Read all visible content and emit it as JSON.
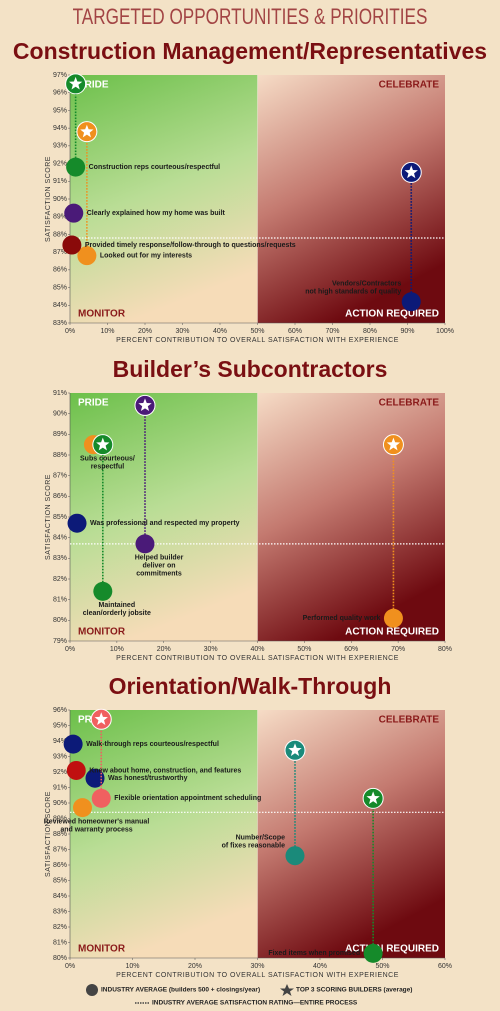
{
  "header": {
    "title": "TARGETED OPPORTUNITIES & PRIORITIES"
  },
  "legend": {
    "industry_average": "INDUSTRY AVERAGE (builders 500 + closings/year)",
    "top3": "TOP 3 SCORING BUILDERS (average)",
    "average_line": "INDUSTRY AVERAGE SATISFACTION RATING—ENTIRE PROCESS"
  },
  "chart_data": [
    {
      "type": "scatter",
      "title": "Construction Management/Representatives",
      "xlabel": "PERCENT CONTRIBUTION TO OVERALL SATISFACTION WITH EXPERIENCE",
      "ylabel": "SATISFACTION SCORE",
      "quadrants": {
        "top_left": "PRIDE",
        "top_right": "CELEBRATE",
        "bottom_left": "MONITOR",
        "bottom_right": "ACTION REQUIRED"
      },
      "xlim": [
        0,
        100
      ],
      "xticks": [
        {
          "value": 0,
          "label": "0%"
        },
        {
          "value": 10,
          "label": "10%"
        },
        {
          "value": 20,
          "label": "20%"
        },
        {
          "value": 30,
          "label": "30%"
        },
        {
          "value": 40,
          "label": "40%"
        },
        {
          "value": 50,
          "label": "50%"
        },
        {
          "value": 60,
          "label": "60%"
        },
        {
          "value": 70,
          "label": "70%"
        },
        {
          "value": 80,
          "label": "80%"
        },
        {
          "value": 90,
          "label": "90%"
        },
        {
          "value": 100,
          "label": "100%"
        }
      ],
      "ylim": [
        83,
        97
      ],
      "yticks": [
        {
          "value": 83,
          "label": "83%"
        },
        {
          "value": 84,
          "label": "84%"
        },
        {
          "value": 85,
          "label": "85%"
        },
        {
          "value": 86,
          "label": "86%"
        },
        {
          "value": 87,
          "label": "87%"
        },
        {
          "value": 88,
          "label": "88%"
        },
        {
          "value": 89,
          "label": "89%"
        },
        {
          "value": 90,
          "label": "90%"
        },
        {
          "value": 91,
          "label": "91%"
        },
        {
          "value": 92,
          "label": "92%"
        },
        {
          "value": 93,
          "label": "93%"
        },
        {
          "value": 94,
          "label": "94%"
        },
        {
          "value": 95,
          "label": "95%"
        },
        {
          "value": 96,
          "label": "96%"
        },
        {
          "value": 97,
          "label": "97%"
        }
      ],
      "divider_x": 50,
      "average_line": 87.8,
      "points": [
        {
          "label": [
            "Construction reps courteous/respectful"
          ],
          "color": "#158a2a",
          "x": 1.5,
          "y": 91.8,
          "top3": 96.5
        },
        {
          "label": [
            "Looked out for my interests"
          ],
          "color": "#f0901e",
          "x": 4.5,
          "y": 86.8,
          "top3": 93.8
        },
        {
          "label": [
            "Clearly explained how my home was built"
          ],
          "color": "#4a1a78",
          "x": 1,
          "y": 89.2,
          "top3": null
        },
        {
          "label": [
            "Provided timely response/follow-through to questions/requests"
          ],
          "color": "#8a0a0a",
          "x": 0.5,
          "y": 87.4,
          "top3": null
        },
        {
          "label": [
            "Vendors/Contractors",
            "not high standards of quality"
          ],
          "color": "#0c1a78",
          "x": 91,
          "y": 84.2,
          "top3": 91.5
        }
      ]
    },
    {
      "type": "scatter",
      "title": "Builder’s Subcontractors",
      "xlabel": "PERCENT CONTRIBUTION TO OVERALL SATISFACTION WITH EXPERIENCE",
      "ylabel": "SATISFACTION SCORE",
      "quadrants": {
        "top_left": "PRIDE",
        "top_right": "CELEBRATE",
        "bottom_left": "MONITOR",
        "bottom_right": "ACTION REQUIRED"
      },
      "xlim": [
        0,
        80
      ],
      "xticks": [
        {
          "value": 0,
          "label": "0%"
        },
        {
          "value": 10,
          "label": "10%"
        },
        {
          "value": 20,
          "label": "20%"
        },
        {
          "value": 30,
          "label": "30%"
        },
        {
          "value": 40,
          "label": "40%"
        },
        {
          "value": 50,
          "label": "50%"
        },
        {
          "value": 60,
          "label": "60%"
        },
        {
          "value": 70,
          "label": "70%"
        },
        {
          "value": 80,
          "label": "80%"
        }
      ],
      "ylim": [
        79,
        91
      ],
      "yticks": [
        {
          "value": 79,
          "label": "79%"
        },
        {
          "value": 80,
          "label": "80%"
        },
        {
          "value": 81,
          "label": "81%"
        },
        {
          "value": 82,
          "label": "82%"
        },
        {
          "value": 83,
          "label": "83%"
        },
        {
          "value": 84,
          "label": "84%"
        },
        {
          "value": 85,
          "label": "85%"
        },
        {
          "value": 86,
          "label": "86%"
        },
        {
          "value": 87,
          "label": "87%"
        },
        {
          "value": 88,
          "label": "88%"
        },
        {
          "value": 89,
          "label": "89%"
        },
        {
          "value": 90,
          "label": "90%"
        },
        {
          "value": 91,
          "label": "91%"
        }
      ],
      "divider_x": 40,
      "average_line": 83.7,
      "points": [
        {
          "label": [
            "Subs courteous/",
            "respectful"
          ],
          "color": "#f0901e",
          "x": 5,
          "y": 88.5,
          "top3": null
        },
        {
          "label": [
            "Maintained",
            "clean/orderly jobsite"
          ],
          "color": "#158a2a",
          "x": 7,
          "y": 81.4,
          "top3": 88.5
        },
        {
          "label": [
            "Was professional and respected my property"
          ],
          "color": "#0c1a78",
          "x": 1.5,
          "y": 84.7,
          "top3": null
        },
        {
          "label": [
            "Helped builder",
            "deliver on",
            "commitments"
          ],
          "color": "#4a1a78",
          "x": 16,
          "y": 83.7,
          "top3": 90.4
        },
        {
          "label": [
            "Performed quality work"
          ],
          "color": "#f0901e",
          "x": 69,
          "y": 80.1,
          "top3": 88.5
        }
      ]
    },
    {
      "type": "scatter",
      "title": "Orientation/Walk-Through",
      "xlabel": "PERCENT CONTRIBUTION TO OVERALL SATISFACTION WITH EXPERIENCE",
      "ylabel": "SATISFACTION SCORE",
      "quadrants": {
        "top_left": "PRIDE",
        "top_right": "CELEBRATE",
        "bottom_left": "MONITOR",
        "bottom_right": "ACTION REQUIRED"
      },
      "xlim": [
        0,
        60
      ],
      "xticks": [
        {
          "value": 0,
          "label": "0%"
        },
        {
          "value": 10,
          "label": "10%"
        },
        {
          "value": 20,
          "label": "20%"
        },
        {
          "value": 30,
          "label": "30%"
        },
        {
          "value": 40,
          "label": "40%"
        },
        {
          "value": 50,
          "label": "50%"
        },
        {
          "value": 60,
          "label": "60%"
        }
      ],
      "ylim": [
        80,
        96
      ],
      "yticks": [
        {
          "value": 80,
          "label": "80%"
        },
        {
          "value": 81,
          "label": "81%"
        },
        {
          "value": 82,
          "label": "82%"
        },
        {
          "value": 83,
          "label": "83%"
        },
        {
          "value": 84,
          "label": "84%"
        },
        {
          "value": 85,
          "label": "85%"
        },
        {
          "value": 86,
          "label": "86%"
        },
        {
          "value": 87,
          "label": "87%"
        },
        {
          "value": 88,
          "label": "88%"
        },
        {
          "value": 89,
          "label": "89%"
        },
        {
          "value": 90,
          "label": "90%"
        },
        {
          "value": 91,
          "label": "91%"
        },
        {
          "value": 92,
          "label": "92%"
        },
        {
          "value": 93,
          "label": "93%"
        },
        {
          "value": 94,
          "label": "94%"
        },
        {
          "value": 95,
          "label": "95%"
        },
        {
          "value": 96,
          "label": "96%"
        }
      ],
      "divider_x": 30,
      "average_line": 89.4,
      "points": [
        {
          "label": [
            "Walk-through reps courteous/respectful"
          ],
          "color": "#0c1a78",
          "x": 0.5,
          "y": 93.8,
          "top3": null
        },
        {
          "label": [
            "Knew about home, construction, and features"
          ],
          "color": "#c01010",
          "x": 1,
          "y": 92.1,
          "top3": null
        },
        {
          "label": [
            "Was honest/trustworthy"
          ],
          "color": "#0c1a78",
          "x": 4,
          "y": 91.6,
          "top3": null
        },
        {
          "label": [
            "Flexible orientation appointment scheduling"
          ],
          "color": "#f06060",
          "x": 5,
          "y": 90.3,
          "top3": 95.4
        },
        {
          "label": [
            "Reviewed homeowner's manual",
            "and warranty process"
          ],
          "color": "#f0901e",
          "x": 2,
          "y": 89.7,
          "top3": null
        },
        {
          "label": [
            "Number/Scope",
            "of fixes reasonable"
          ],
          "color": "#1a8a7a",
          "x": 36,
          "y": 86.6,
          "top3": 93.4
        },
        {
          "label": [
            "Fixed items when promised"
          ],
          "color": "#158a2a",
          "x": 48.5,
          "y": 80.3,
          "top3": 90.3
        }
      ]
    }
  ]
}
